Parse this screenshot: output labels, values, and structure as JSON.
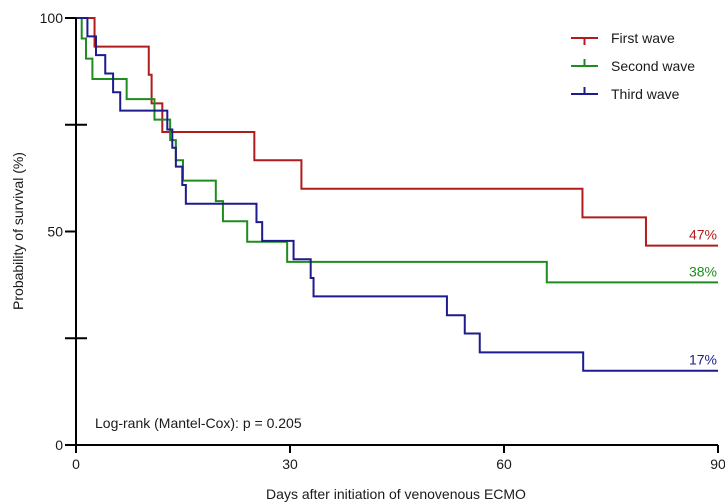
{
  "chart_data": {
    "type": "line",
    "subtype": "kaplan-meier-step",
    "title": "",
    "xlabel": "Days after initiation of venovenous ECMO",
    "ylabel": "Probability of survival (%)",
    "xlim": [
      0,
      90
    ],
    "ylim": [
      0,
      100
    ],
    "x_ticks": [
      0,
      30,
      60,
      90
    ],
    "x_tick_labels": [
      "0",
      "30",
      "60",
      "90"
    ],
    "y_major_ticks": [
      0,
      50,
      100
    ],
    "y_tick_labels": [
      "0",
      "50",
      "100"
    ],
    "y_minor_ticks": [
      25,
      75
    ],
    "grid": false,
    "legend_position": "top-right",
    "annotation": "Log-rank (Mantel-Cox): p = 0.205",
    "series": [
      {
        "name": "First wave",
        "color": "#b01c1c",
        "end_label": "47%",
        "x": [
          0,
          2.6,
          10.2,
          10.6,
          12.1,
          25.0,
          31.6,
          71.0,
          79.9,
          90
        ],
        "y": [
          100,
          93.3,
          86.7,
          80.0,
          73.3,
          66.7,
          60.0,
          53.3,
          46.7,
          46.7
        ]
      },
      {
        "name": "Second wave",
        "color": "#1f8c1f",
        "end_label": "38%",
        "x": [
          0,
          0.8,
          1.4,
          2.3,
          7.1,
          11.0,
          13.2,
          14.0,
          15.0,
          19.6,
          20.6,
          24.0,
          29.6,
          66.0,
          90
        ],
        "y": [
          100,
          95.2,
          90.5,
          85.7,
          81.0,
          76.2,
          71.4,
          66.7,
          61.9,
          57.1,
          52.4,
          47.6,
          42.9,
          38.1,
          38.1
        ]
      },
      {
        "name": "Third wave",
        "color": "#1c1c8c",
        "end_label": "17%",
        "x": [
          0,
          1.6,
          2.8,
          4.1,
          5.2,
          6.2,
          9.7,
          12.8,
          13.5,
          14.0,
          14.9,
          15.4,
          25.3,
          26.1,
          30.5,
          32.9,
          33.3,
          52.0,
          54.5,
          56.6,
          71.1,
          90
        ],
        "y": [
          100,
          95.7,
          91.3,
          87.0,
          82.6,
          78.3,
          78.3,
          73.9,
          69.6,
          65.2,
          60.9,
          56.5,
          52.2,
          47.8,
          43.5,
          39.1,
          34.8,
          30.4,
          26.1,
          21.7,
          17.4,
          17.4
        ]
      }
    ]
  }
}
